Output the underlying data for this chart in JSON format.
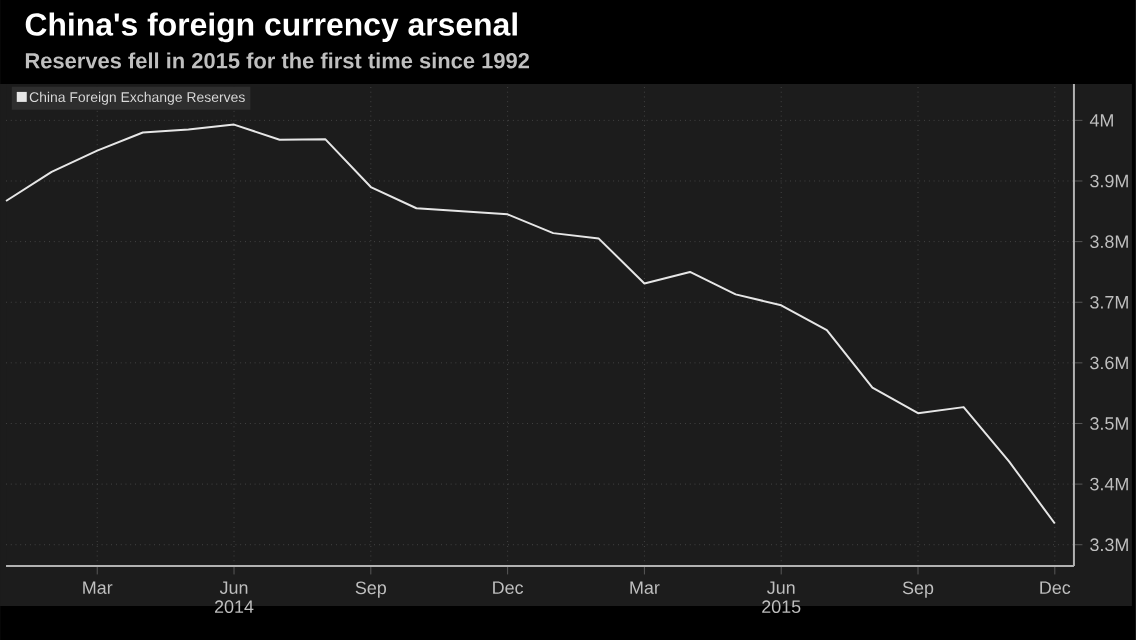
{
  "chart_data": {
    "type": "line",
    "title": "China's foreign currency arsenal",
    "subtitle": "Reserves fell in 2015 for the first time since 1992",
    "x": [
      "2014-01",
      "2014-02",
      "2014-03",
      "2014-04",
      "2014-05",
      "2014-06",
      "2014-07",
      "2014-08",
      "2014-09",
      "2014-10",
      "2014-11",
      "2014-12",
      "2015-01",
      "2015-02",
      "2015-03",
      "2015-04",
      "2015-05",
      "2015-06",
      "2015-07",
      "2015-08",
      "2015-09",
      "2015-10",
      "2015-11",
      "2015-12"
    ],
    "series": [
      {
        "name": "China Foreign Exchange Reserves",
        "color": "#e6e6e6",
        "values": [
          3.867,
          3.915,
          3.95,
          3.98,
          3.985,
          3.993,
          3.968,
          3.969,
          3.89,
          3.855,
          3.85,
          3.845,
          3.814,
          3.805,
          3.731,
          3.75,
          3.713,
          3.695,
          3.654,
          3.559,
          3.517,
          3.527,
          3.437,
          3.335
        ]
      }
    ],
    "xlim": [
      "2014-01",
      "2015-12-14"
    ],
    "xticks": [
      {
        "value": "2014-03",
        "label": "Mar"
      },
      {
        "value": "2014-06",
        "label": "Jun"
      },
      {
        "value": "2014-09",
        "label": "Sep"
      },
      {
        "value": "2014-12",
        "label": "Dec"
      },
      {
        "value": "2015-03",
        "label": "Mar"
      },
      {
        "value": "2015-06",
        "label": "Jun"
      },
      {
        "value": "2015-09",
        "label": "Sep"
      },
      {
        "value": "2015-12",
        "label": "Dec"
      }
    ],
    "annotations": [
      "2014",
      "2015"
    ],
    "ylim": [
      3.265,
      4.06
    ],
    "yticks": [
      {
        "value": 3.3,
        "label": "3.3M"
      },
      {
        "value": 3.4,
        "label": "3.4M"
      },
      {
        "value": 3.5,
        "label": "3.5M"
      },
      {
        "value": 3.6,
        "label": "3.6M"
      },
      {
        "value": 3.7,
        "label": "3.7M"
      },
      {
        "value": 3.8,
        "label": "3.8M"
      },
      {
        "value": 3.9,
        "label": "3.9M"
      },
      {
        "value": 4,
        "label": "4M"
      }
    ],
    "grid": true,
    "legend": "top left",
    "marker": "none",
    "line_style": "solid"
  }
}
